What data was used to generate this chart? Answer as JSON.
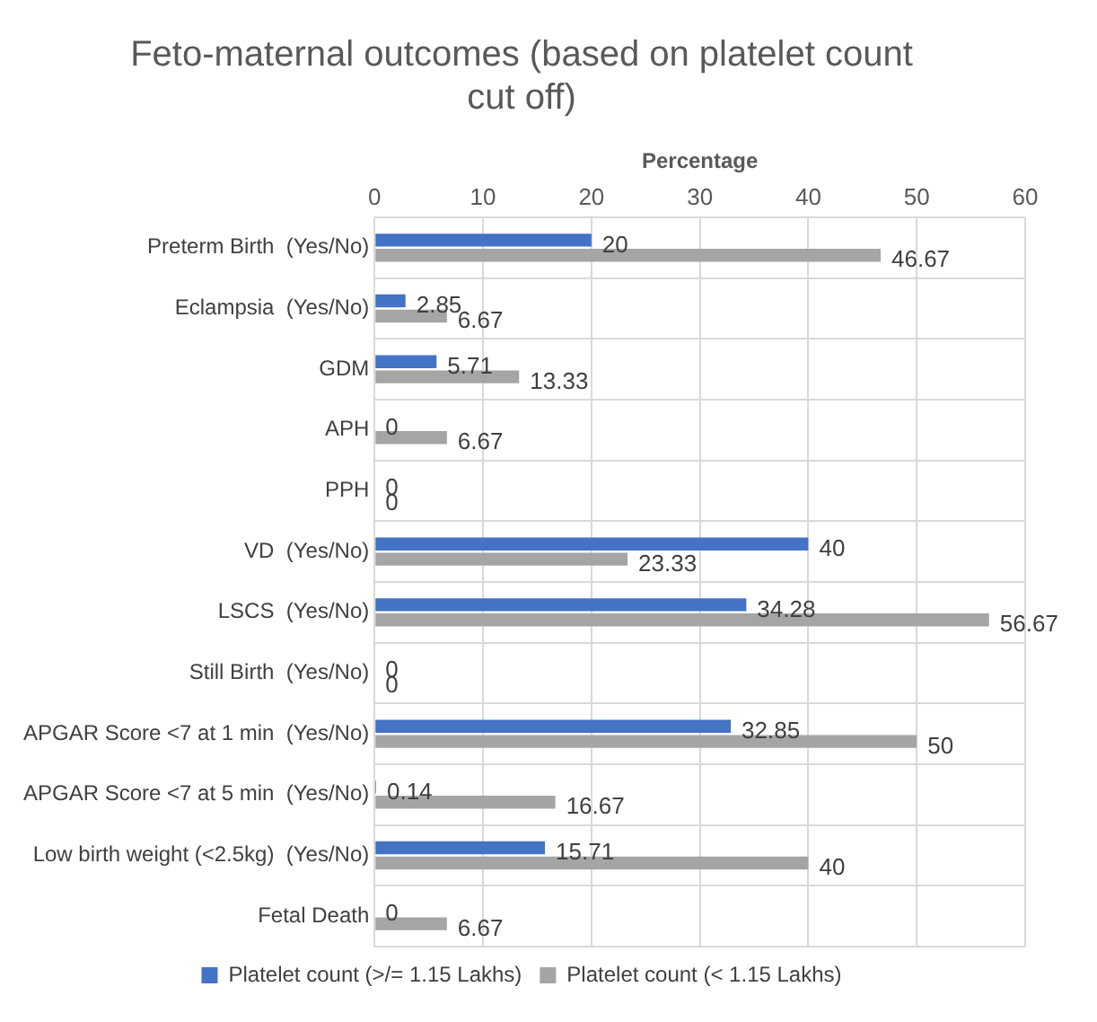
{
  "chart_data": {
    "type": "bar",
    "orientation": "horizontal",
    "title": "Feto-maternal outcomes (based on platelet count cut off)",
    "xlabel": "Percentage",
    "categories": [
      "Preterm Birth  (Yes/No)",
      "Eclampsia  (Yes/No)",
      "GDM",
      "APH",
      "PPH",
      "VD  (Yes/No)",
      "LSCS  (Yes/No)",
      "Still Birth  (Yes/No)",
      "APGAR Score <7 at 1 min  (Yes/No)",
      "APGAR Score <7 at 5 min  (Yes/No)",
      "Low birth weight (<2.5kg)  (Yes/No)",
      "Fetal Death"
    ],
    "series": [
      {
        "name": "Platelet count (>/= 1.15 Lakhs)",
        "color": "#4472c4",
        "values": [
          20,
          2.85,
          5.71,
          0,
          0,
          40,
          34.28,
          0,
          32.85,
          0.14,
          15.71,
          0
        ]
      },
      {
        "name": "Platelet count (< 1.15 Lakhs)",
        "color": "#a5a5a5",
        "values": [
          46.67,
          6.67,
          13.33,
          6.67,
          0,
          23.33,
          56.67,
          0,
          50,
          16.67,
          40,
          6.67
        ]
      }
    ],
    "xlim": [
      0,
      60
    ],
    "xticks": [
      0,
      10,
      20,
      30,
      40,
      50,
      60
    ],
    "grid": true,
    "legend": "bottom",
    "data_labels": true
  }
}
